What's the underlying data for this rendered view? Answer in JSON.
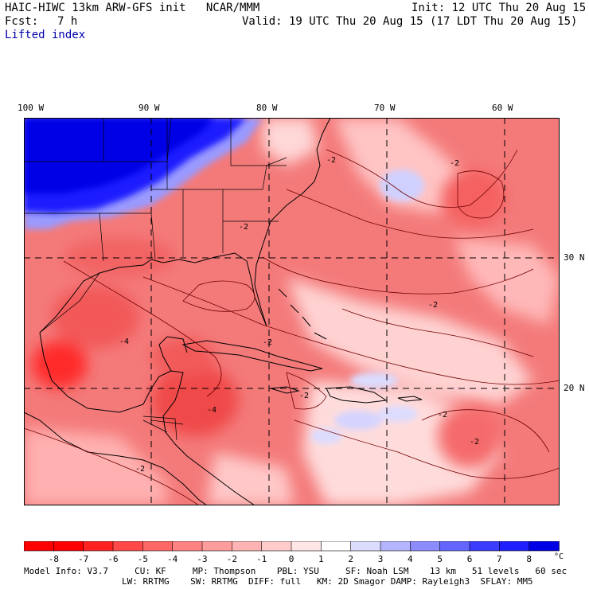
{
  "header": {
    "title": "HAIC-HIWC 13km ARW-GFS init   NCAR/MMM",
    "init": "Init: 12 UTC Thu 20 Aug 15",
    "fcst_label": "Fcst:",
    "fcst_value": "7 h",
    "valid": "Valid: 19 UTC Thu 20 Aug 15 (17 LDT Thu 20 Aug 15)",
    "field": "Lifted index"
  },
  "map": {
    "lon_labels": [
      "100 W",
      "90 W",
      "80 W",
      "70 W",
      "60 W"
    ],
    "lat_labels": [
      "30 N",
      "20 N"
    ],
    "contour_labels": [
      "-2",
      "-2",
      "-2",
      "-2",
      "-2",
      "-2",
      "-4",
      "-4",
      "-2",
      "-2",
      "-2"
    ]
  },
  "colorbar": {
    "labels": [
      "-8",
      "-7",
      "-6",
      "-5",
      "-4",
      "-3",
      "-2",
      "-1",
      "0",
      "1",
      "2",
      "3",
      "4",
      "5",
      "6",
      "7",
      "8"
    ],
    "unit": "°C",
    "colors": [
      "#ff0000",
      "#ff2222",
      "#ff4848",
      "#ff6666",
      "#ff8282",
      "#ff9c9c",
      "#ffb4b4",
      "#ffcccc",
      "#ffe6e6",
      "#ffffff",
      "#dcdcff",
      "#b4b4ff",
      "#8c8cff",
      "#6464ff",
      "#3c3cff",
      "#1e1eff",
      "#0000e6"
    ]
  },
  "footer": {
    "line1": "Model Info: V3.7     CU: KF     MP: Thompson    PBL: YSU     SF: Noah LSM    13 km   51 levels   60 sec",
    "line2": "LW: RRTMG    SW: RRTMG  DIFF: full   KM: 2D Smagor DAMP: Rayleigh3  SFLAY: MM5"
  },
  "legend_colors": {
    "unstable_deep": "#ff3030",
    "unstable": "#f26060",
    "neutral": "#ffe8e8",
    "stable_light": "#c8c8ff",
    "stable_deep": "#0000e6"
  }
}
